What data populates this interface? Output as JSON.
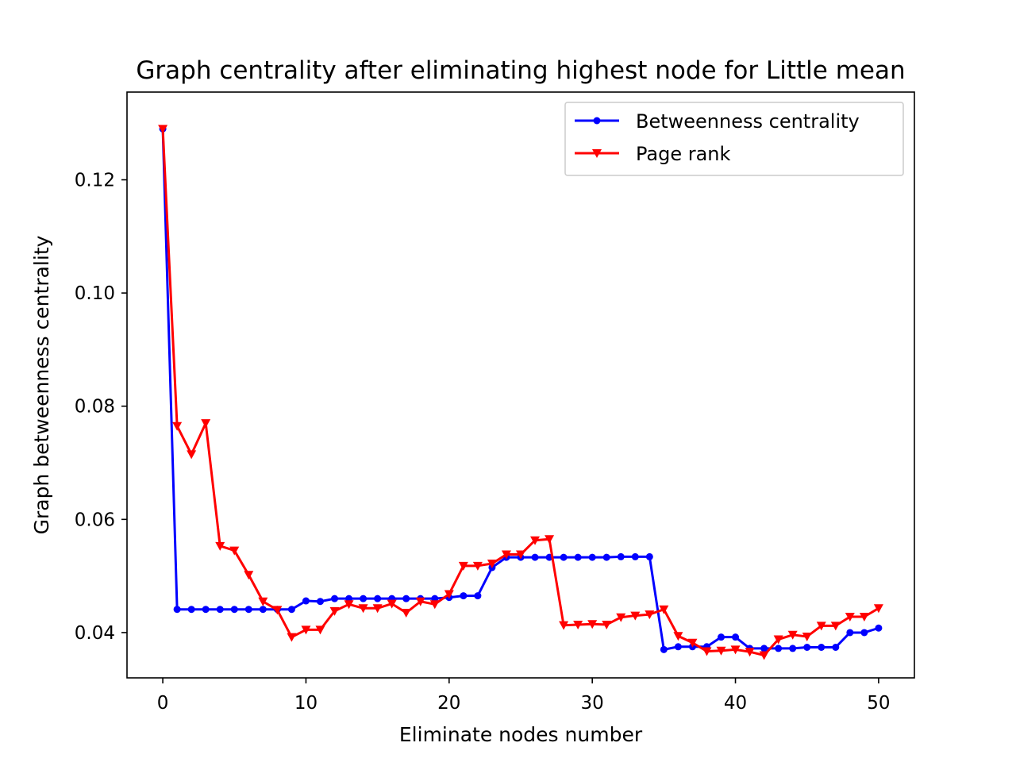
{
  "chart_data": {
    "type": "line",
    "title": "Graph centrality after eliminating highest node for Little mean",
    "xlabel": "Eliminate nodes number",
    "ylabel": "Graph betweenness centrality",
    "xlim": [
      -2.5,
      52.5
    ],
    "ylim": [
      0.032,
      0.1355
    ],
    "xticks": [
      0,
      10,
      20,
      30,
      40,
      50
    ],
    "xtick_labels": [
      "0",
      "10",
      "20",
      "30",
      "40",
      "50"
    ],
    "yticks": [
      0.04,
      0.06,
      0.08,
      0.1,
      0.12
    ],
    "ytick_labels": [
      "0.04",
      "0.06",
      "0.08",
      "0.10",
      "0.12"
    ],
    "grid": false,
    "legend_position": "top-right",
    "x": [
      0,
      1,
      2,
      3,
      4,
      5,
      6,
      7,
      8,
      9,
      10,
      11,
      12,
      13,
      14,
      15,
      16,
      17,
      18,
      19,
      20,
      21,
      22,
      23,
      24,
      25,
      26,
      27,
      28,
      29,
      30,
      31,
      32,
      33,
      34,
      35,
      36,
      37,
      38,
      39,
      40,
      41,
      42,
      43,
      44,
      45,
      46,
      47,
      48,
      49,
      50
    ],
    "series": [
      {
        "name": "Betweenness centrality",
        "color": "#0000ff",
        "marker": "circle",
        "values": [
          0.129,
          0.0441,
          0.0441,
          0.0441,
          0.0441,
          0.0441,
          0.0441,
          0.0441,
          0.0441,
          0.0441,
          0.0456,
          0.0455,
          0.046,
          0.046,
          0.046,
          0.046,
          0.046,
          0.046,
          0.046,
          0.046,
          0.0462,
          0.0465,
          0.0465,
          0.0515,
          0.0533,
          0.0533,
          0.0533,
          0.0533,
          0.0533,
          0.0533,
          0.0533,
          0.0533,
          0.0534,
          0.0534,
          0.0534,
          0.037,
          0.0375,
          0.0375,
          0.0375,
          0.0392,
          0.0392,
          0.0372,
          0.0372,
          0.0372,
          0.0372,
          0.0374,
          0.0374,
          0.0374,
          0.04,
          0.04,
          0.0408
        ]
      },
      {
        "name": "Page rank",
        "color": "#ff0000",
        "marker": "triangle-down",
        "values": [
          0.129,
          0.0765,
          0.0715,
          0.077,
          0.0553,
          0.0545,
          0.0502,
          0.0455,
          0.044,
          0.0392,
          0.0405,
          0.0405,
          0.0438,
          0.045,
          0.0443,
          0.0443,
          0.0451,
          0.0435,
          0.0455,
          0.045,
          0.0468,
          0.0518,
          0.0518,
          0.0522,
          0.0538,
          0.0538,
          0.0563,
          0.0565,
          0.0413,
          0.0414,
          0.0415,
          0.0414,
          0.0427,
          0.043,
          0.0432,
          0.0441,
          0.0394,
          0.0382,
          0.0367,
          0.0368,
          0.037,
          0.0366,
          0.036,
          0.0388,
          0.0396,
          0.0393,
          0.0412,
          0.0412,
          0.0428,
          0.0428,
          0.0443
        ]
      }
    ]
  }
}
